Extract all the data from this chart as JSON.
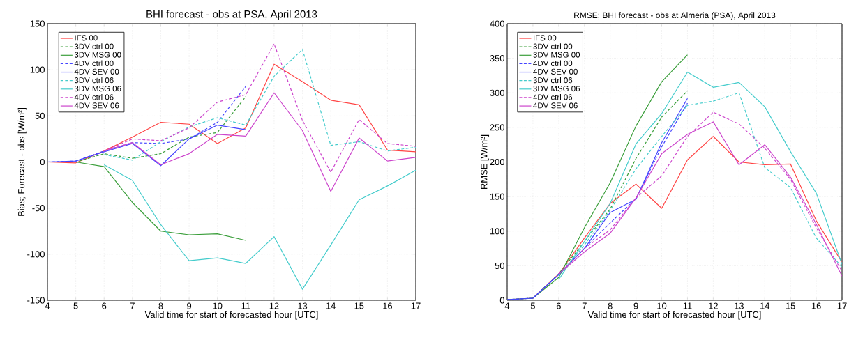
{
  "chart_data": [
    {
      "type": "line",
      "title": "BHI forecast - obs at PSA, April 2013",
      "xlabel": "Valid time for start of forecasted hour [UTC]",
      "ylabel": "Bias; Forecast - obs [W/m²]",
      "x": [
        4,
        5,
        6,
        7,
        8,
        9,
        10,
        11,
        12,
        13,
        14,
        15,
        16,
        17
      ],
      "xlim": [
        4,
        17
      ],
      "ylim": [
        -150,
        150
      ],
      "xticks": [
        4,
        5,
        6,
        7,
        8,
        9,
        10,
        11,
        12,
        13,
        14,
        15,
        16,
        17
      ],
      "yticks": [
        -150,
        -100,
        -50,
        0,
        50,
        100,
        150
      ],
      "grid": true,
      "legend": "top left",
      "series": [
        {
          "name": "IFS 00",
          "color": "#ff4444",
          "line_style": "solid",
          "values": [
            0,
            -1,
            12,
            27,
            43,
            41,
            20,
            37,
            106,
            87,
            67,
            62,
            13,
            11
          ]
        },
        {
          "name": "3DV ctrl 00",
          "color": "#3a9e3a",
          "line_style": "dashed",
          "values": [
            0,
            0,
            9,
            4,
            9,
            27,
            32,
            71,
            null,
            null,
            null,
            null,
            null,
            null
          ]
        },
        {
          "name": "3DV MSG 00",
          "color": "#3a9e3a",
          "line_style": "solid",
          "values": [
            0,
            0,
            -5,
            -44,
            -75,
            -79,
            -78,
            -85,
            null,
            null,
            null,
            null,
            null,
            null
          ]
        },
        {
          "name": "4DV ctrl 00",
          "color": "#4444ff",
          "line_style": "dashed",
          "values": [
            0,
            1,
            12,
            21,
            20,
            25,
            43,
            82,
            null,
            null,
            null,
            null,
            null,
            null
          ]
        },
        {
          "name": "4DV SEV 00",
          "color": "#4444ff",
          "line_style": "solid",
          "values": [
            0,
            1,
            11,
            20,
            -4,
            25,
            40,
            35,
            null,
            null,
            null,
            null,
            null,
            null
          ]
        },
        {
          "name": "3DV ctrl 06",
          "color": "#44cccc",
          "line_style": "dashed",
          "values": [
            null,
            null,
            8,
            2,
            22,
            38,
            48,
            40,
            93,
            122,
            18,
            22,
            12,
            16
          ]
        },
        {
          "name": "3DV MSG 06",
          "color": "#44cccc",
          "line_style": "solid",
          "values": [
            null,
            null,
            -3,
            -20,
            -68,
            -107,
            -104,
            -110,
            -81,
            -138,
            -90,
            -41,
            -26,
            -9
          ]
        },
        {
          "name": "4DV ctrl 06",
          "color": "#cc44cc",
          "line_style": "dashed",
          "values": [
            null,
            null,
            12,
            25,
            23,
            37,
            65,
            73,
            128,
            45,
            -11,
            46,
            20,
            17
          ]
        },
        {
          "name": "4DV SEV 06",
          "color": "#cc44cc",
          "line_style": "solid",
          "values": [
            null,
            null,
            12,
            21,
            -3,
            9,
            30,
            28,
            75,
            34,
            -32,
            26,
            1,
            5
          ]
        }
      ]
    },
    {
      "type": "line",
      "title": "RMSE; BHI forecast - obs at Almeria (PSA), April 2013",
      "xlabel": "Valid time for start of forecasted hour [UTC]",
      "ylabel": "RMSE [W/m²]",
      "x": [
        4,
        5,
        6,
        7,
        8,
        9,
        10,
        11,
        12,
        13,
        14,
        15,
        16,
        17
      ],
      "xlim": [
        4,
        17
      ],
      "ylim": [
        0,
        400
      ],
      "xticks": [
        4,
        5,
        6,
        7,
        8,
        9,
        10,
        11,
        12,
        13,
        14,
        15,
        16,
        17
      ],
      "yticks": [
        0,
        50,
        100,
        150,
        200,
        250,
        300,
        350,
        400
      ],
      "grid": true,
      "legend": "top left",
      "series": [
        {
          "name": "IFS 00",
          "color": "#ff4444",
          "line_style": "solid",
          "values": [
            1,
            3,
            38,
            90,
            140,
            168,
            133,
            203,
            237,
            200,
            196,
            197,
            115,
            55
          ]
        },
        {
          "name": "3DV ctrl 00",
          "color": "#3a9e3a",
          "line_style": "dashed",
          "values": [
            1,
            3,
            38,
            85,
            132,
            205,
            265,
            303,
            null,
            null,
            null,
            null,
            null,
            null
          ]
        },
        {
          "name": "3DV MSG 00",
          "color": "#3a9e3a",
          "line_style": "solid",
          "values": [
            1,
            3,
            33,
            105,
            170,
            252,
            316,
            355,
            null,
            null,
            null,
            null,
            null,
            null
          ]
        },
        {
          "name": "4DV ctrl 00",
          "color": "#4444ff",
          "line_style": "dashed",
          "values": [
            1,
            3,
            38,
            75,
            112,
            147,
            222,
            285,
            null,
            null,
            null,
            null,
            null,
            null
          ]
        },
        {
          "name": "4DV SEV 00",
          "color": "#4444ff",
          "line_style": "solid",
          "values": [
            1,
            3,
            37,
            75,
            127,
            146,
            228,
            292,
            null,
            null,
            null,
            null,
            null,
            null
          ]
        },
        {
          "name": "3DV ctrl 06",
          "color": "#44cccc",
          "line_style": "dashed",
          "values": [
            null,
            null,
            35,
            80,
            130,
            190,
            237,
            282,
            288,
            300,
            192,
            163,
            90,
            48
          ]
        },
        {
          "name": "3DV MSG 06",
          "color": "#44cccc",
          "line_style": "solid",
          "values": [
            null,
            null,
            30,
            85,
            140,
            226,
            270,
            330,
            308,
            315,
            280,
            215,
            155,
            52
          ]
        },
        {
          "name": "4DV ctrl 06",
          "color": "#cc44cc",
          "line_style": "dashed",
          "values": [
            null,
            null,
            38,
            75,
            102,
            148,
            180,
            237,
            272,
            255,
            220,
            175,
            105,
            42
          ]
        },
        {
          "name": "4DV SEV 06",
          "color": "#cc44cc",
          "line_style": "solid",
          "values": [
            null,
            null,
            38,
            70,
            97,
            148,
            212,
            240,
            258,
            196,
            225,
            178,
            110,
            35
          ]
        }
      ]
    }
  ]
}
